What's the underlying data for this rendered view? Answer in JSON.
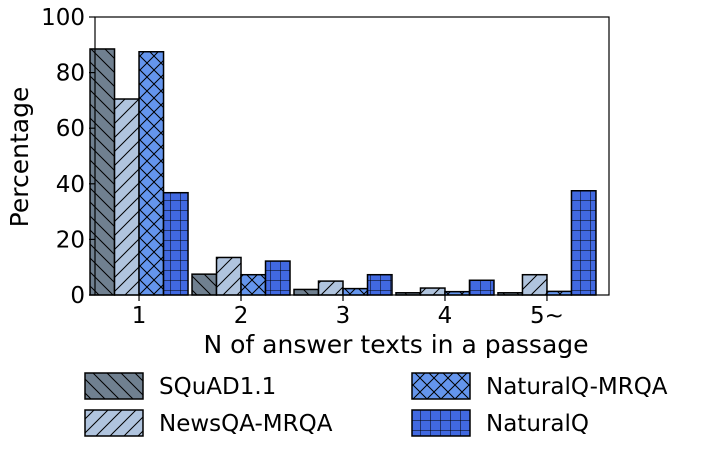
{
  "chart_data": {
    "type": "bar",
    "categories": [
      "1",
      "2",
      "3",
      "4",
      "5~"
    ],
    "series": [
      {
        "name": "SQuAD1.1",
        "values": [
          88.5,
          7.5,
          2.0,
          0.8,
          0.8
        ],
        "color": "#708090",
        "hatch": "backslash"
      },
      {
        "name": "NewsQA-MRQA",
        "values": [
          70.5,
          13.5,
          5.0,
          2.5,
          7.3
        ],
        "color": "#b0c4de",
        "hatch": "slash"
      },
      {
        "name": "NaturalQ-MRQA",
        "values": [
          87.5,
          7.3,
          2.3,
          1.2,
          1.3
        ],
        "color": "#6495ed",
        "hatch": "cross"
      },
      {
        "name": "NaturalQ",
        "values": [
          36.8,
          12.2,
          7.3,
          5.3,
          37.5
        ],
        "color": "#4169e1",
        "hatch": "grid"
      }
    ],
    "xlabel": "N of answer texts in a passage",
    "ylabel": "Percentage",
    "ylim": [
      0,
      100
    ],
    "yticks": [
      0,
      20,
      40,
      60,
      80,
      100
    ],
    "grid": false,
    "legend_position": "bottom"
  }
}
